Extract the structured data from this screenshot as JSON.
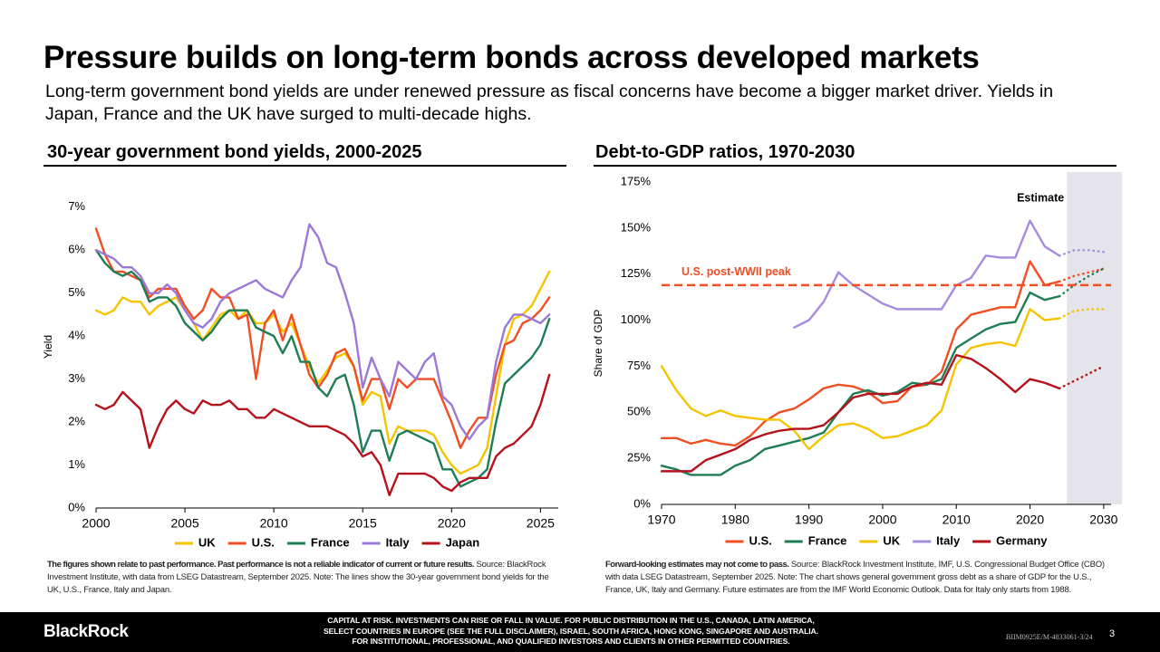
{
  "header": {
    "title": "Pressure builds on long-term bonds across developed markets",
    "subtitle": "Long-term government bond yields are under renewed pressure as fiscal concerns have become a bigger market driver. Yields in Japan, France and the UK have surged to multi-decade highs."
  },
  "chart_data": [
    {
      "type": "line",
      "title": "30-year government bond yields, 2000-2025",
      "y_label": "Yield",
      "x": [
        2000,
        2000.5,
        2001,
        2001.5,
        2002,
        2002.5,
        2003,
        2003.5,
        2004,
        2004.5,
        2005,
        2005.5,
        2006,
        2006.5,
        2007,
        2007.5,
        2008,
        2008.5,
        2009,
        2009.5,
        2010,
        2010.5,
        2011,
        2011.5,
        2012,
        2012.5,
        2013,
        2013.5,
        2014,
        2014.5,
        2015,
        2015.5,
        2016,
        2016.5,
        2017,
        2017.5,
        2018,
        2018.5,
        2019,
        2019.5,
        2020,
        2020.5,
        2021,
        2021.5,
        2022,
        2022.5,
        2023,
        2023.5,
        2024,
        2024.5,
        2025,
        2025.5
      ],
      "series": [
        {
          "name": "UK",
          "color": "#f5c400",
          "values": [
            4.6,
            4.5,
            4.6,
            4.9,
            4.8,
            4.8,
            4.5,
            4.7,
            4.8,
            4.9,
            4.6,
            4.3,
            3.9,
            4.2,
            4.5,
            4.6,
            4.4,
            4.6,
            4.3,
            4.3,
            4.5,
            4.1,
            4.3,
            3.8,
            3.3,
            2.9,
            3.2,
            3.5,
            3.6,
            3.3,
            2.4,
            2.7,
            2.6,
            1.5,
            1.9,
            1.8,
            1.8,
            1.8,
            1.7,
            1.3,
            1.0,
            0.8,
            0.9,
            1.0,
            1.4,
            2.6,
            3.8,
            4.4,
            4.5,
            4.7,
            5.1,
            5.5
          ]
        },
        {
          "name": "U.S.",
          "color": "#f04e23",
          "values": [
            6.5,
            5.9,
            5.5,
            5.5,
            5.4,
            5.3,
            4.9,
            5.1,
            5.1,
            5.1,
            4.7,
            4.4,
            4.6,
            5.1,
            4.9,
            4.9,
            4.4,
            4.5,
            3.0,
            4.3,
            4.6,
            3.9,
            4.5,
            3.8,
            3.1,
            2.8,
            3.1,
            3.6,
            3.7,
            3.3,
            2.5,
            3.0,
            3.0,
            2.3,
            3.0,
            2.8,
            3.0,
            3.0,
            3.0,
            2.5,
            2.0,
            1.4,
            1.8,
            2.1,
            2.1,
            3.1,
            3.8,
            3.9,
            4.3,
            4.4,
            4.6,
            4.9
          ]
        },
        {
          "name": "France",
          "color": "#1e7d55",
          "values": [
            6.0,
            5.7,
            5.5,
            5.4,
            5.5,
            5.3,
            4.8,
            4.9,
            4.9,
            4.7,
            4.3,
            4.1,
            3.9,
            4.1,
            4.4,
            4.6,
            4.6,
            4.6,
            4.2,
            4.1,
            4.0,
            3.6,
            4.0,
            3.4,
            3.4,
            2.8,
            2.6,
            3.0,
            3.1,
            2.4,
            1.3,
            1.8,
            1.8,
            1.1,
            1.7,
            1.8,
            1.7,
            1.6,
            1.5,
            0.9,
            0.9,
            0.5,
            0.6,
            0.7,
            0.9,
            2.0,
            2.9,
            3.1,
            3.3,
            3.5,
            3.8,
            4.4
          ]
        },
        {
          "name": "Italy",
          "color": "#9b78d8",
          "values": [
            6.0,
            5.9,
            5.8,
            5.6,
            5.6,
            5.4,
            5.0,
            5.0,
            5.2,
            5.0,
            4.6,
            4.3,
            4.2,
            4.4,
            4.8,
            5.0,
            5.1,
            5.2,
            5.3,
            5.1,
            5.0,
            4.9,
            5.3,
            5.6,
            6.6,
            6.3,
            5.7,
            5.6,
            5.0,
            4.3,
            2.8,
            3.5,
            3.0,
            2.6,
            3.4,
            3.2,
            3.0,
            3.4,
            3.6,
            2.6,
            2.4,
            1.9,
            1.6,
            1.9,
            2.1,
            3.4,
            4.2,
            4.5,
            4.5,
            4.4,
            4.3,
            4.5
          ]
        },
        {
          "name": "Japan",
          "color": "#b5121b",
          "values": [
            2.4,
            2.3,
            2.4,
            2.7,
            2.5,
            2.3,
            1.4,
            1.9,
            2.3,
            2.5,
            2.3,
            2.2,
            2.5,
            2.4,
            2.4,
            2.5,
            2.3,
            2.3,
            2.1,
            2.1,
            2.3,
            2.2,
            2.1,
            2.0,
            1.9,
            1.9,
            1.9,
            1.8,
            1.7,
            1.5,
            1.2,
            1.3,
            1.0,
            0.3,
            0.8,
            0.8,
            0.8,
            0.8,
            0.7,
            0.5,
            0.4,
            0.6,
            0.7,
            0.7,
            0.7,
            1.2,
            1.4,
            1.5,
            1.7,
            1.9,
            2.4,
            3.1
          ]
        }
      ],
      "xlim": [
        2000,
        2026
      ],
      "xticks": [
        2000,
        2005,
        2010,
        2015,
        2020,
        2025
      ],
      "ylim": [
        0,
        7.5
      ],
      "yticks": [
        {
          "value": 0,
          "label": "0%"
        },
        {
          "value": 1,
          "label": "1%"
        },
        {
          "value": 2,
          "label": "2%"
        },
        {
          "value": 3,
          "label": "3%"
        },
        {
          "value": 4,
          "label": "4%"
        },
        {
          "value": 5,
          "label": "5%"
        },
        {
          "value": 6,
          "label": "6%"
        },
        {
          "value": 7,
          "label": "7%"
        }
      ],
      "grid": false,
      "note": {
        "emphasis": "The figures shown relate to past performance. Past performance is not a reliable indicator of current or future results.",
        "text": "Source: BlackRock Investment Institute, with data from LSEG Datastream, September 2025. Note: The lines show the 30-year government bond yields for the UK, U.S., France, Italy and Japan."
      }
    },
    {
      "type": "line",
      "title": "Debt-to-GDP ratios, 1970-2030",
      "y_label": "Share of GDP",
      "x": [
        1970,
        1972,
        1974,
        1976,
        1978,
        1980,
        1982,
        1984,
        1986,
        1988,
        1990,
        1992,
        1994,
        1996,
        1998,
        2000,
        2002,
        2004,
        2006,
        2008,
        2010,
        2012,
        2014,
        2016,
        2018,
        2020,
        2022,
        2024,
        2026,
        2028,
        2030
      ],
      "series": [
        {
          "name": "U.S.",
          "color": "#f04e23",
          "values": [
            36,
            36,
            33,
            35,
            33,
            32,
            37,
            45,
            50,
            52,
            57,
            63,
            65,
            64,
            61,
            55,
            56,
            64,
            65,
            72,
            95,
            103,
            105,
            107,
            107,
            132,
            119,
            121,
            124,
            126,
            128
          ]
        },
        {
          "name": "France",
          "color": "#1e7d55",
          "values": [
            21,
            19,
            16,
            16,
            16,
            21,
            24,
            30,
            32,
            34,
            36,
            39,
            50,
            60,
            62,
            59,
            61,
            66,
            65,
            68,
            85,
            90,
            95,
            98,
            99,
            115,
            111,
            113,
            119,
            124,
            128
          ]
        },
        {
          "name": "UK",
          "color": "#f5c400",
          "values": [
            75,
            62,
            52,
            48,
            51,
            48,
            47,
            46,
            46,
            40,
            30,
            37,
            43,
            44,
            41,
            36,
            37,
            40,
            43,
            51,
            76,
            85,
            87,
            88,
            86,
            106,
            100,
            101,
            105,
            106,
            106
          ]
        },
        {
          "name": "Italy",
          "color": "#a78bdf",
          "values": [
            null,
            null,
            null,
            null,
            null,
            null,
            null,
            null,
            null,
            96,
            100,
            110,
            126,
            119,
            114,
            109,
            106,
            106,
            106,
            106,
            119,
            123,
            135,
            134,
            134,
            154,
            140,
            135,
            138,
            138,
            137
          ]
        },
        {
          "name": "Germany",
          "color": "#b5121b",
          "values": [
            18,
            18,
            18,
            24,
            27,
            30,
            35,
            38,
            40,
            41,
            41,
            43,
            50,
            58,
            60,
            60,
            60,
            64,
            66,
            65,
            81,
            79,
            74,
            68,
            61,
            68,
            66,
            63,
            67,
            71,
            75
          ]
        }
      ],
      "xlim": [
        1970,
        2031
      ],
      "xticks": [
        1970,
        1980,
        1990,
        2000,
        2010,
        2020,
        2030
      ],
      "ylim": [
        0,
        175
      ],
      "yticks": [
        {
          "value": 0,
          "label": "0%"
        },
        {
          "value": 25,
          "label": "25%"
        },
        {
          "value": 50,
          "label": "50%"
        },
        {
          "value": 75,
          "label": "75%"
        },
        {
          "value": 100,
          "label": "100%"
        },
        {
          "value": 125,
          "label": "125%"
        },
        {
          "value": 150,
          "label": "150%"
        },
        {
          "value": 175,
          "label": "175%"
        }
      ],
      "grid": false,
      "estimate_start": 2025,
      "estimate_label": "Estimate",
      "reference_line": {
        "value": 119,
        "label": "U.S. post-WWII peak",
        "color": "#f04e23"
      },
      "note": {
        "emphasis": "Forward-looking estimates may not come to pass.",
        "text": "Source: BlackRock Investment Institute, IMF, U.S. Congressional Budget Office (CBO) with data LSEG Datastream, September 2025. Note: The chart shows general government gross debt as a share of GDP for the U.S., France, UK, Italy and Germany. Future estimates are from the IMF World Economic Outlook. Data for Italy only starts from 1988."
      }
    }
  ],
  "footer": {
    "logo": "BlackRock",
    "disclaimer": [
      "CAPITAL AT RISK. INVESTMENTS CAN RISE OR FALL IN VALUE. FOR PUBLIC DISTRIBUTION IN THE U.S., CANADA, LATIN AMERICA,",
      "SELECT COUNTRIES IN EUROPE (SEE THE FULL DISCLAIMER), ISRAEL, SOUTH AFRICA, HONG KONG, SINGAPORE AND AUSTRALIA.",
      "FOR INSTITUTIONAL, PROFESSIONAL, AND QUALIFIED INVESTORS AND CLIENTS IN OTHER PERMITTED COUNTRIES."
    ],
    "code": "BIIM0925E/M-4833061-3/24",
    "page": "3"
  }
}
